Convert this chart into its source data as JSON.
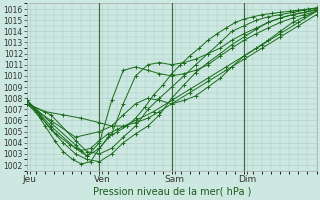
{
  "xlabel": "Pression niveau de la mer( hPa )",
  "background_color": "#cce8e0",
  "plot_bg_color": "#cce8e0",
  "grid_color": "#aacccc",
  "line_color": "#1a6b1a",
  "ylim": [
    1001.5,
    1016.5
  ],
  "xlim": [
    0.0,
    4.0
  ],
  "xtick_positions": [
    0.04,
    1.04,
    2.04,
    3.04
  ],
  "xtick_labels": [
    "Jeu",
    "Ven",
    "Sam",
    "Dim"
  ],
  "ytick_positions": [
    1002,
    1003,
    1004,
    1005,
    1006,
    1007,
    1008,
    1009,
    1010,
    1011,
    1012,
    1013,
    1014,
    1015,
    1016
  ],
  "series": [
    [
      0.0,
      1007.8,
      0.12,
      1006.8,
      0.25,
      1005.5,
      0.38,
      1004.2,
      0.5,
      1003.2,
      0.63,
      1002.5,
      0.75,
      1002.1,
      0.88,
      1002.3,
      1.0,
      1003.5,
      1.12,
      1004.5,
      1.25,
      1005.0,
      1.38,
      1005.5,
      1.5,
      1006.2,
      1.63,
      1007.2,
      1.75,
      1008.3,
      1.88,
      1009.2,
      2.0,
      1010.2,
      2.12,
      1011.0,
      2.25,
      1011.8,
      2.38,
      1012.5,
      2.5,
      1013.2,
      2.63,
      1013.8,
      2.75,
      1014.3,
      2.88,
      1014.8,
      3.0,
      1015.1,
      3.12,
      1015.3,
      3.25,
      1015.5,
      3.38,
      1015.6,
      3.5,
      1015.7,
      3.63,
      1015.8,
      3.75,
      1015.9,
      3.88,
      1016.0,
      4.0,
      1016.1
    ],
    [
      0.0,
      1007.8,
      0.17,
      1006.5,
      0.33,
      1005.2,
      0.5,
      1004.0,
      0.67,
      1003.0,
      0.83,
      1002.5,
      1.0,
      1002.3,
      1.17,
      1003.0,
      1.33,
      1004.0,
      1.5,
      1004.8,
      1.67,
      1005.5,
      1.83,
      1006.5,
      2.0,
      1008.0,
      2.17,
      1009.2,
      2.33,
      1010.3,
      2.5,
      1011.2,
      2.67,
      1012.0,
      2.83,
      1012.8,
      3.0,
      1013.5,
      3.17,
      1014.2,
      3.33,
      1014.8,
      3.5,
      1015.2,
      3.67,
      1015.5,
      3.83,
      1015.7,
      4.0,
      1015.9
    ],
    [
      0.0,
      1007.5,
      0.2,
      1006.2,
      0.4,
      1004.8,
      0.6,
      1003.8,
      0.75,
      1003.3,
      0.88,
      1003.5,
      1.0,
      1004.2,
      1.12,
      1004.8,
      1.25,
      1005.2,
      1.5,
      1006.0,
      1.75,
      1006.8,
      2.0,
      1007.8,
      2.25,
      1008.8,
      2.5,
      1009.8,
      2.75,
      1010.8,
      3.0,
      1011.8,
      3.25,
      1012.8,
      3.5,
      1013.8,
      3.75,
      1014.8,
      4.0,
      1015.8
    ],
    [
      0.0,
      1007.5,
      0.25,
      1006.8,
      0.5,
      1006.5,
      0.75,
      1006.2,
      1.0,
      1005.8,
      1.17,
      1005.5,
      1.33,
      1005.5,
      1.5,
      1005.8,
      1.67,
      1006.2,
      1.83,
      1006.8,
      2.0,
      1007.5,
      2.25,
      1008.5,
      2.5,
      1009.5,
      2.75,
      1010.5,
      3.0,
      1011.5,
      3.25,
      1012.5,
      3.5,
      1013.5,
      3.75,
      1014.5,
      4.0,
      1015.5
    ],
    [
      0.0,
      1007.5,
      0.33,
      1006.0,
      0.67,
      1004.5,
      1.0,
      1005.0,
      1.17,
      1005.5,
      1.33,
      1006.5,
      1.5,
      1007.5,
      1.67,
      1008.0,
      1.83,
      1007.8,
      2.0,
      1007.5,
      2.17,
      1007.8,
      2.33,
      1008.2,
      2.5,
      1009.0,
      2.67,
      1009.8,
      2.83,
      1010.8,
      3.0,
      1011.8,
      3.17,
      1012.5,
      3.33,
      1013.2,
      3.5,
      1014.0,
      3.67,
      1014.8,
      3.83,
      1015.3,
      4.0,
      1015.8
    ],
    [
      0.0,
      1007.8,
      0.33,
      1005.5,
      0.67,
      1003.5,
      0.83,
      1002.8,
      1.0,
      1003.5,
      1.17,
      1004.8,
      1.33,
      1007.5,
      1.5,
      1010.0,
      1.67,
      1011.0,
      1.83,
      1011.2,
      2.0,
      1011.0,
      2.17,
      1011.2,
      2.33,
      1011.5,
      2.5,
      1012.0,
      2.67,
      1012.5,
      2.83,
      1013.2,
      3.0,
      1013.8,
      3.17,
      1014.3,
      3.33,
      1014.8,
      3.5,
      1015.2,
      3.67,
      1015.5,
      3.83,
      1015.7,
      4.0,
      1016.0
    ],
    [
      0.0,
      1007.8,
      0.33,
      1005.8,
      0.67,
      1003.8,
      0.83,
      1002.8,
      1.0,
      1004.0,
      1.17,
      1007.8,
      1.33,
      1010.5,
      1.5,
      1010.8,
      1.67,
      1010.5,
      1.83,
      1010.2,
      2.0,
      1010.0,
      2.17,
      1010.2,
      2.33,
      1010.5,
      2.5,
      1011.0,
      2.67,
      1011.8,
      2.83,
      1012.5,
      3.0,
      1013.2,
      3.17,
      1013.8,
      3.33,
      1014.3,
      3.5,
      1014.8,
      3.67,
      1015.2,
      3.83,
      1015.5,
      4.0,
      1015.8
    ],
    [
      0.0,
      1007.5,
      0.33,
      1006.5,
      0.67,
      1004.2,
      0.83,
      1003.2,
      1.0,
      1003.0,
      1.17,
      1003.5,
      1.33,
      1004.5,
      1.5,
      1005.5,
      1.67,
      1007.0,
      1.83,
      1008.0,
      2.0,
      1009.0,
      2.17,
      1010.0,
      2.33,
      1011.0,
      2.5,
      1012.0,
      2.67,
      1013.0,
      2.83,
      1014.0,
      3.0,
      1014.5,
      3.17,
      1015.0,
      3.33,
      1015.3,
      3.5,
      1015.5,
      3.67,
      1015.7,
      3.83,
      1015.9,
      4.0,
      1016.1
    ]
  ],
  "vline_positions": [
    1.0,
    2.0,
    3.0
  ]
}
